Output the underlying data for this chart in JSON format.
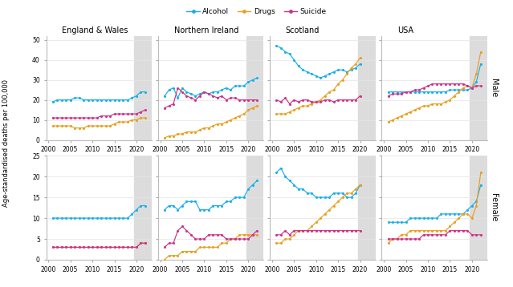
{
  "years": [
    2001,
    2002,
    2003,
    2004,
    2005,
    2006,
    2007,
    2008,
    2009,
    2010,
    2011,
    2012,
    2013,
    2014,
    2015,
    2016,
    2017,
    2018,
    2019,
    2020,
    2021,
    2022
  ],
  "regions": [
    "England & Wales",
    "Northern Ireland",
    "Scotland",
    "USA"
  ],
  "colors": {
    "Alcohol": "#1AAEEB",
    "Drugs": "#E8A020",
    "Suicide": "#CC3388"
  },
  "shade_color": "#DCDCDC",
  "EW_male_alcohol": [
    19,
    20,
    20,
    20,
    20,
    21,
    21,
    20,
    20,
    20,
    20,
    20,
    20,
    20,
    20,
    20,
    20,
    20,
    21,
    22,
    24,
    24
  ],
  "EW_male_drugs": [
    7,
    7,
    7,
    7,
    7,
    6,
    6,
    6,
    7,
    7,
    7,
    7,
    7,
    7,
    8,
    9,
    9,
    9,
    10,
    10,
    11,
    11
  ],
  "EW_male_suicide": [
    11,
    11,
    11,
    11,
    11,
    11,
    11,
    11,
    11,
    11,
    11,
    12,
    12,
    12,
    13,
    13,
    13,
    13,
    13,
    13,
    14,
    15
  ],
  "EW_female_alcohol": [
    10,
    10,
    10,
    10,
    10,
    10,
    10,
    10,
    10,
    10,
    10,
    10,
    10,
    10,
    10,
    10,
    10,
    10,
    11,
    12,
    13,
    13
  ],
  "EW_female_drugs": [
    3,
    3,
    3,
    3,
    3,
    3,
    3,
    3,
    3,
    3,
    3,
    3,
    3,
    3,
    3,
    3,
    3,
    3,
    3,
    3,
    4,
    4
  ],
  "EW_female_suicide": [
    3,
    3,
    3,
    3,
    3,
    3,
    3,
    3,
    3,
    3,
    3,
    3,
    3,
    3,
    3,
    3,
    3,
    3,
    3,
    3,
    4,
    4
  ],
  "NI_male_alcohol": [
    22,
    25,
    26,
    21,
    26,
    24,
    23,
    22,
    23,
    24,
    23,
    24,
    24,
    25,
    26,
    25,
    27,
    27,
    27,
    29,
    30,
    31
  ],
  "NI_male_drugs": [
    1,
    2,
    2,
    3,
    3,
    4,
    4,
    4,
    5,
    6,
    6,
    7,
    8,
    8,
    9,
    10,
    11,
    12,
    13,
    15,
    16,
    17
  ],
  "NI_male_suicide": [
    16,
    17,
    18,
    26,
    24,
    22,
    21,
    20,
    22,
    24,
    23,
    22,
    21,
    22,
    20,
    21,
    21,
    20,
    20,
    20,
    20,
    20
  ],
  "NI_female_alcohol": [
    12,
    13,
    13,
    12,
    13,
    14,
    14,
    14,
    12,
    12,
    12,
    13,
    13,
    13,
    14,
    14,
    15,
    15,
    15,
    17,
    18,
    19
  ],
  "NI_female_drugs": [
    0,
    1,
    1,
    1,
    2,
    2,
    2,
    2,
    3,
    3,
    3,
    3,
    3,
    4,
    4,
    5,
    5,
    6,
    6,
    6,
    6,
    6
  ],
  "NI_female_suicide": [
    3,
    4,
    4,
    7,
    8,
    7,
    6,
    5,
    5,
    5,
    6,
    6,
    6,
    6,
    5,
    5,
    5,
    5,
    5,
    5,
    6,
    7
  ],
  "SC_male_alcohol": [
    47,
    46,
    44,
    43,
    40,
    37,
    35,
    34,
    33,
    32,
    31,
    32,
    33,
    34,
    35,
    35,
    34,
    35,
    36,
    38,
    null,
    null
  ],
  "SC_male_drugs": [
    13,
    13,
    13,
    14,
    15,
    16,
    17,
    17,
    18,
    19,
    20,
    22,
    24,
    25,
    28,
    30,
    33,
    36,
    38,
    41,
    null,
    null
  ],
  "SC_male_suicide": [
    20,
    19,
    21,
    18,
    20,
    19,
    20,
    20,
    19,
    19,
    19,
    20,
    20,
    19,
    20,
    20,
    20,
    20,
    20,
    22,
    null,
    null
  ],
  "SC_female_alcohol": [
    21,
    22,
    20,
    19,
    18,
    17,
    17,
    16,
    16,
    15,
    15,
    15,
    15,
    16,
    16,
    16,
    15,
    15,
    16,
    18,
    null,
    null
  ],
  "SC_female_drugs": [
    4,
    4,
    5,
    5,
    6,
    7,
    7,
    7,
    8,
    9,
    10,
    11,
    12,
    13,
    14,
    15,
    16,
    16,
    17,
    18,
    null,
    null
  ],
  "SC_female_suicide": [
    6,
    6,
    7,
    6,
    7,
    7,
    7,
    7,
    7,
    7,
    7,
    7,
    7,
    7,
    7,
    7,
    7,
    7,
    7,
    7,
    null,
    null
  ],
  "USA_male_alcohol": [
    24,
    24,
    24,
    24,
    24,
    24,
    24,
    24,
    24,
    24,
    24,
    24,
    24,
    24,
    25,
    25,
    25,
    25,
    25,
    26,
    29,
    38
  ],
  "USA_male_drugs": [
    9,
    10,
    11,
    12,
    13,
    14,
    15,
    16,
    17,
    17,
    18,
    18,
    18,
    19,
    20,
    22,
    24,
    26,
    27,
    26,
    33,
    44
  ],
  "USA_male_suicide": [
    22,
    23,
    23,
    23,
    24,
    24,
    25,
    25,
    26,
    27,
    28,
    28,
    28,
    28,
    28,
    28,
    28,
    28,
    27,
    26,
    27,
    27
  ],
  "USA_female_alcohol": [
    9,
    9,
    9,
    9,
    9,
    10,
    10,
    10,
    10,
    10,
    10,
    10,
    11,
    11,
    11,
    11,
    11,
    11,
    12,
    13,
    14,
    18
  ],
  "USA_female_drugs": [
    4,
    5,
    5,
    6,
    6,
    7,
    7,
    7,
    7,
    7,
    7,
    7,
    7,
    7,
    8,
    9,
    10,
    11,
    11,
    10,
    13,
    21
  ],
  "USA_female_suicide": [
    5,
    5,
    5,
    5,
    5,
    5,
    5,
    5,
    6,
    6,
    6,
    6,
    6,
    6,
    7,
    7,
    7,
    7,
    7,
    6,
    6,
    6
  ],
  "ylabel": "Age-standardised deaths per 100,000",
  "male_ylim": [
    0,
    52
  ],
  "female_ylim": [
    0,
    25
  ],
  "male_yticks": [
    0,
    10,
    20,
    30,
    40,
    50
  ],
  "female_yticks": [
    0,
    5,
    10,
    15,
    20,
    25
  ],
  "xlim_min": 1999.5,
  "xlim_max": 2023.5,
  "xticks": [
    2000,
    2005,
    2010,
    2015,
    2020
  ]
}
